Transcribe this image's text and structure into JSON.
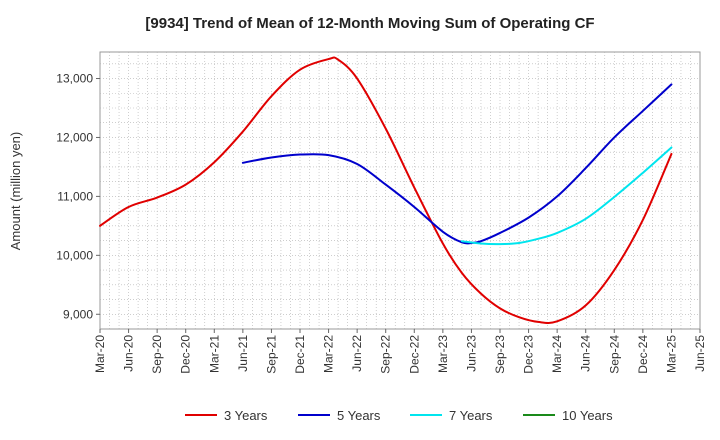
{
  "chart_data": {
    "type": "line",
    "title": "[9934]  Trend of Mean of 12-Month Moving Sum of Operating CF",
    "xlabel": "",
    "ylabel": "Amount (million yen)",
    "ylim": [
      8750,
      13450
    ],
    "yticks": [
      9000,
      10000,
      11000,
      12000,
      13000
    ],
    "ytick_labels": [
      "9,000",
      "10,000",
      "11,000",
      "12,000",
      "13,000"
    ],
    "x_tick_labels": [
      "Mar-20",
      "Jun-20",
      "Sep-20",
      "Dec-20",
      "Mar-21",
      "Jun-21",
      "Sep-21",
      "Dec-21",
      "Mar-22",
      "Jun-22",
      "Sep-22",
      "Dec-22",
      "Mar-23",
      "Jun-23",
      "Sep-23",
      "Dec-23",
      "Mar-24",
      "Jun-24",
      "Sep-24",
      "Dec-24",
      "Mar-25",
      "Jun-25"
    ],
    "x_range_months": [
      0,
      63
    ],
    "x_unit": "months since Mar-20",
    "grid": true,
    "legend_position": "bottom",
    "series": [
      {
        "name": "3 Years",
        "color": "#e00000",
        "x": [
          0,
          3,
          6,
          9,
          12,
          15,
          18,
          21,
          24,
          25,
          27,
          30,
          33,
          36,
          38,
          40,
          42,
          44,
          46,
          48,
          51,
          54,
          57,
          60
        ],
        "values": [
          10500,
          10820,
          10980,
          11200,
          11580,
          12100,
          12700,
          13150,
          13330,
          13320,
          13000,
          12150,
          11150,
          10200,
          9700,
          9350,
          9100,
          8950,
          8870,
          8880,
          9150,
          9750,
          10600,
          11720
        ]
      },
      {
        "name": "5 Years",
        "color": "#0000cc",
        "x": [
          15,
          18,
          21,
          24,
          27,
          30,
          33,
          36,
          38,
          39,
          40,
          42,
          45,
          48,
          51,
          54,
          57,
          60
        ],
        "values": [
          11570,
          11660,
          11710,
          11700,
          11550,
          11200,
          10820,
          10400,
          10220,
          10210,
          10240,
          10380,
          10640,
          11000,
          11480,
          12000,
          12450,
          12900
        ]
      },
      {
        "name": "7 Years",
        "color": "#00e5ee",
        "x": [
          38,
          40,
          42,
          44,
          46,
          48,
          51,
          54,
          57,
          60
        ],
        "values": [
          10240,
          10200,
          10190,
          10210,
          10280,
          10380,
          10620,
          10990,
          11400,
          11830
        ]
      },
      {
        "name": "10 Years",
        "color": "#1a8a1a",
        "x": [],
        "values": []
      }
    ]
  }
}
